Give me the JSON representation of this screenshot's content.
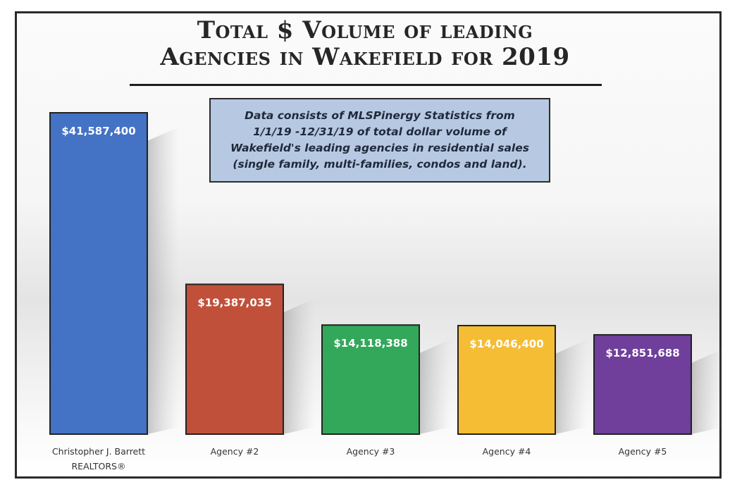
{
  "chart_data": {
    "type": "bar",
    "title": "Total $ Volume of leading Agencies in Wakefield for 2019",
    "title_lines": [
      "Total $ Volume of leading",
      "Agencies in Wakefield for 2019"
    ],
    "note": "Data consists of MLSPinergy Statistics from\n1/1/19 -12/31/19 of total dollar volume of\nWakefield's leading agencies in residential sales\n(single family, multi-families, condos and land).",
    "categories": [
      [
        "Christopher J. Barrett",
        "REALTORS®"
      ],
      [
        "Agency #2"
      ],
      [
        "Agency #3"
      ],
      [
        "Agency #4"
      ],
      [
        "Agency #5"
      ]
    ],
    "values": [
      41587400,
      19387035,
      14118388,
      14046400,
      12851688
    ],
    "data_labels": [
      "$41,587,400",
      "$19,387,035",
      "$14,118,388",
      "$14,046,400",
      "$12,851,688"
    ],
    "colors": [
      "#4472c4",
      "#c0503a",
      "#33a85a",
      "#f5bd34",
      "#6f3f9b"
    ],
    "xlabel": "",
    "ylabel": "",
    "ylim": [
      0,
      41587400
    ],
    "grid": false,
    "legend": "none",
    "axes_visible": false
  }
}
